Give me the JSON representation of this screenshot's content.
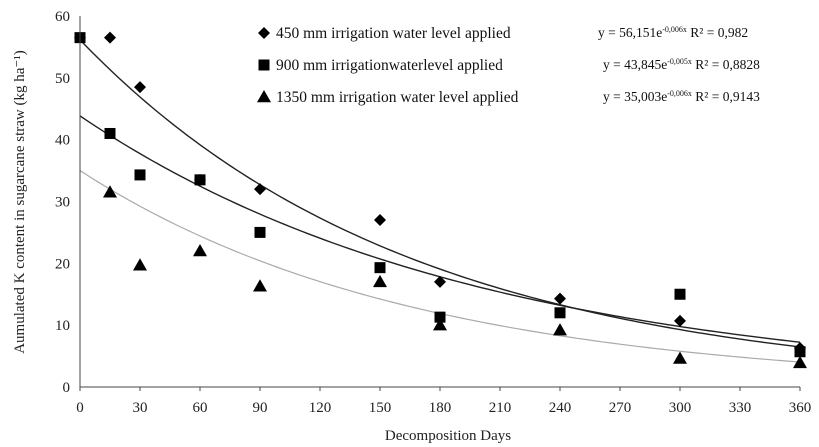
{
  "chart_data": {
    "type": "scatter",
    "xlabel": "Decomposition Days",
    "ylabel": "Aumulated K content in sugarcane straw (kg ha⁻¹)",
    "xlim": [
      0,
      360
    ],
    "ylim": [
      0,
      60
    ],
    "xticks": [
      "0",
      "30",
      "60",
      "90",
      "120",
      "150",
      "180",
      "210",
      "240",
      "270",
      "300",
      "330",
      "360"
    ],
    "yticks": [
      "0",
      "10",
      "20",
      "30",
      "40",
      "50",
      "60"
    ],
    "grid": false,
    "legend_position": "top-right",
    "series": [
      {
        "name": "450 mm irrigation water level applied",
        "marker": "diamond",
        "line_color": "#222222",
        "x": [
          0,
          15,
          30,
          60,
          90,
          150,
          180,
          240,
          300,
          360
        ],
        "y": [
          56.5,
          56.5,
          48.5,
          33.5,
          32,
          27,
          17,
          14.3,
          10.7,
          6.3
        ],
        "fit": {
          "a": 56.151,
          "b": 0.006
        },
        "equation": {
          "prefix": "y = 56,151e",
          "exponent": "-0,006x",
          "r2_text": "R² = 0,982"
        }
      },
      {
        "name": "900 mm irrigationwaterlevel applied",
        "marker": "square",
        "line_color": "#222222",
        "x": [
          0,
          15,
          30,
          60,
          90,
          150,
          180,
          240,
          300,
          360
        ],
        "y": [
          56.5,
          41,
          34.3,
          33.5,
          25,
          19.3,
          11.3,
          12,
          15,
          5.7
        ],
        "fit": {
          "a": 43.845,
          "b": 0.005
        },
        "equation": {
          "prefix": "y = 43,845e",
          "exponent": "-0,005x",
          "r2_text": "R² = 0,8828"
        }
      },
      {
        "name": "1350 mm irrigation water level applied",
        "marker": "triangle",
        "line_color": "#aaaaaa",
        "x": [
          15,
          30,
          60,
          90,
          150,
          180,
          240,
          300,
          360
        ],
        "y": [
          31.5,
          19.7,
          22,
          16.3,
          17,
          10,
          9.2,
          4.6,
          3.9
        ],
        "fit": {
          "a": 35.003,
          "b": 0.006
        },
        "equation": {
          "prefix": "y = 35,003e",
          "exponent": "-0,006x",
          "r2_text": "R² = 0,9143"
        }
      }
    ]
  }
}
